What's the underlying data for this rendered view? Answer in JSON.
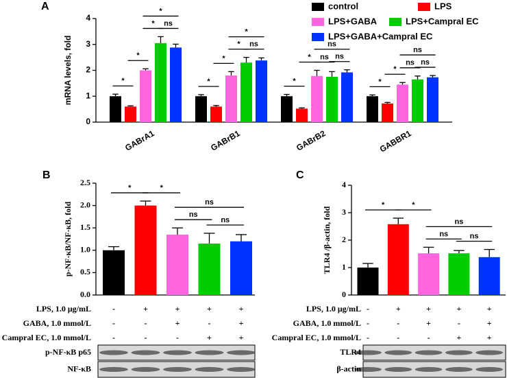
{
  "chart_data": [
    {
      "panel": "A",
      "type": "bar",
      "ylabel": "mRNA levels, fold",
      "categories": [
        "GABrA1",
        "GABrB1",
        "GABrB2",
        "GABBR1"
      ],
      "series": [
        {
          "name": "control",
          "color": "#000000",
          "values": [
            1.0,
            1.0,
            1.0,
            1.0
          ],
          "errors": [
            0.08,
            0.06,
            0.07,
            0.05
          ]
        },
        {
          "name": "LPS",
          "color": "#ff0000",
          "values": [
            0.6,
            0.6,
            0.52,
            0.72
          ],
          "errors": [
            0.03,
            0.04,
            0.03,
            0.04
          ]
        },
        {
          "name": "LPS+GABA",
          "color": "#ff66e0",
          "values": [
            2.0,
            1.8,
            1.78,
            1.45
          ],
          "errors": [
            0.06,
            0.15,
            0.22,
            0.08
          ]
        },
        {
          "name": "LPS+Campral EC",
          "color": "#00cc00",
          "values": [
            3.05,
            2.3,
            1.75,
            1.65
          ],
          "errors": [
            0.25,
            0.2,
            0.2,
            0.13
          ]
        },
        {
          "name": "LPS+GABA+Campral EC",
          "color": "#0033ff",
          "values": [
            2.88,
            2.38,
            1.92,
            1.73
          ],
          "errors": [
            0.13,
            0.1,
            0.1,
            0.07
          ]
        }
      ],
      "ylim": [
        0,
        4
      ],
      "yticks": [
        0,
        1,
        2,
        3,
        4
      ],
      "legend": "top-right",
      "annotations": [
        {
          "text": "*",
          "category": 0,
          "from": 0,
          "to": 1
        },
        {
          "text": "*",
          "category": 0,
          "from": 1,
          "to": 2
        },
        {
          "text": "*",
          "category": 0,
          "from": 2,
          "to": 3
        },
        {
          "text": "ns",
          "category": 0,
          "from": 3,
          "to": 4
        },
        {
          "text": "*",
          "category": 0,
          "from": 2,
          "to": 4
        },
        {
          "text": "*",
          "category": 1,
          "from": 0,
          "to": 1
        },
        {
          "text": "*",
          "category": 1,
          "from": 1,
          "to": 2
        },
        {
          "text": "*",
          "category": 1,
          "from": 2,
          "to": 3
        },
        {
          "text": "ns",
          "category": 1,
          "from": 3,
          "to": 4
        },
        {
          "text": "*",
          "category": 1,
          "from": 2,
          "to": 4
        },
        {
          "text": "*",
          "category": 2,
          "from": 0,
          "to": 1
        },
        {
          "text": "*",
          "category": 2,
          "from": 1,
          "to": 2
        },
        {
          "text": "ns",
          "category": 2,
          "from": 2,
          "to": 3
        },
        {
          "text": "ns",
          "category": 2,
          "from": 3,
          "to": 4
        },
        {
          "text": "ns",
          "category": 2,
          "from": 2,
          "to": 4
        },
        {
          "text": "*",
          "category": 3,
          "from": 0,
          "to": 1
        },
        {
          "text": "*",
          "category": 3,
          "from": 1,
          "to": 2
        },
        {
          "text": "ns",
          "category": 3,
          "from": 2,
          "to": 3
        },
        {
          "text": "ns",
          "category": 3,
          "from": 3,
          "to": 4
        },
        {
          "text": "ns",
          "category": 3,
          "from": 2,
          "to": 4
        }
      ]
    },
    {
      "panel": "B",
      "type": "bar",
      "ylabel": "p-NF-κB/NF-κB, fold",
      "categories": [
        null,
        null,
        null,
        null,
        null
      ],
      "values": [
        1.0,
        2.0,
        1.35,
        1.15,
        1.2
      ],
      "errors": [
        0.08,
        0.1,
        0.15,
        0.23,
        0.15
      ],
      "colors": [
        "#000000",
        "#ff0000",
        "#ff66e0",
        "#00cc00",
        "#0033ff"
      ],
      "ylim": [
        0,
        2.5
      ],
      "yticks": [
        {
          "value": 0,
          "label": "0.0"
        },
        {
          "value": 0.5,
          "label": "0.5"
        },
        {
          "value": 1,
          "label": "1.0"
        },
        {
          "value": 1.5,
          "label": "1.5"
        },
        {
          "value": 2,
          "label": "2.0"
        },
        {
          "value": 2.5,
          "label": "2.5"
        }
      ],
      "annotations": [
        {
          "text": "*",
          "from": 0,
          "to": 1
        },
        {
          "text": "*",
          "from": 1,
          "to": 2
        },
        {
          "text": "ns",
          "from": 2,
          "to": 3
        },
        {
          "text": "ns",
          "from": 3,
          "to": 4
        },
        {
          "text": "ns",
          "from": 2,
          "to": 4
        }
      ],
      "treatments": [
        {
          "label": "LPS, 1.0 μg/mL",
          "marks": [
            "-",
            "+",
            "+",
            "+",
            "+"
          ]
        },
        {
          "label": "GABA, 1.0 mmol/L",
          "marks": [
            "-",
            "-",
            "+",
            "-",
            "+"
          ]
        },
        {
          "label": "Campral EC, 1.0 mmol/L",
          "marks": [
            "-",
            "-",
            "-",
            "+",
            "+"
          ]
        }
      ],
      "blots": [
        "p-NF-κB p65",
        "NF-κB"
      ]
    },
    {
      "panel": "C",
      "type": "bar",
      "ylabel": "TLR4 /β-actin, fold",
      "categories": [
        null,
        null,
        null,
        null,
        null
      ],
      "values": [
        1.0,
        2.58,
        1.52,
        1.52,
        1.38
      ],
      "errors": [
        0.15,
        0.22,
        0.22,
        0.1,
        0.28
      ],
      "colors": [
        "#000000",
        "#ff0000",
        "#ff66e0",
        "#00cc00",
        "#0033ff"
      ],
      "ylim": [
        0,
        4
      ],
      "yticks": [
        0,
        1,
        2,
        3,
        4
      ],
      "annotations": [
        {
          "text": "*",
          "from": 0,
          "to": 1
        },
        {
          "text": "*",
          "from": 1,
          "to": 2
        },
        {
          "text": "ns",
          "from": 2,
          "to": 3
        },
        {
          "text": "ns",
          "from": 3,
          "to": 4
        },
        {
          "text": "ns",
          "from": 2,
          "to": 4
        }
      ],
      "treatments": [
        {
          "label": "LPS, 1.0 μg/mL",
          "marks": [
            "-",
            "+",
            "+",
            "+",
            "+"
          ]
        },
        {
          "label": "GABA, 1.0 mmol/L",
          "marks": [
            "-",
            "-",
            "+",
            "-",
            "+"
          ]
        },
        {
          "label": "Campral EC, 1.0 mmol/L",
          "marks": [
            "-",
            "-",
            "-",
            "+",
            "+"
          ]
        }
      ],
      "blots": [
        "TLR4",
        "β-actin"
      ]
    }
  ]
}
